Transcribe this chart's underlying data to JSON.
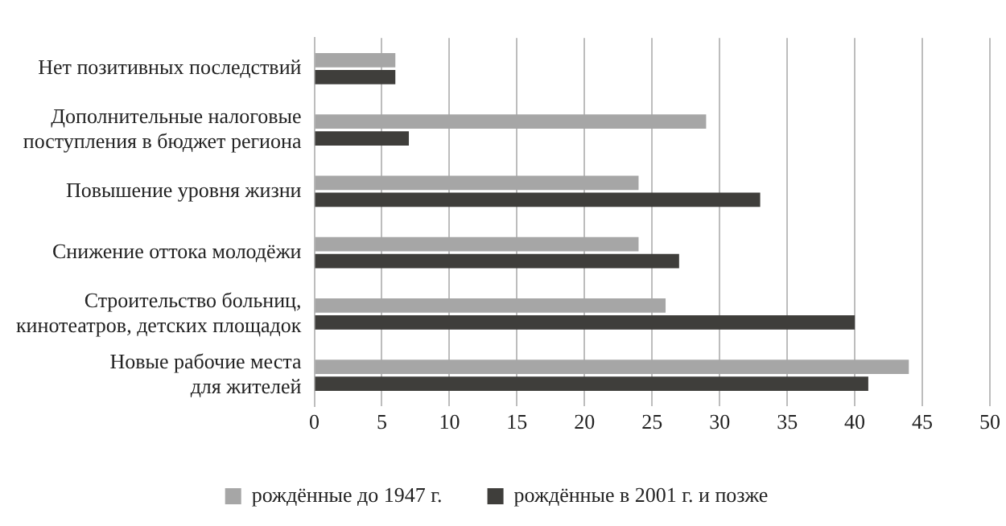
{
  "chart_data": {
    "type": "bar",
    "orientation": "horizontal",
    "categories": [
      "Нет позитивных последствий",
      "Дополнительные налоговые\nпоступления в бюджет региона",
      "Повышение уровня жизни",
      "Снижение оттока молодёжи",
      "Строительство больниц,\nкинотеатров, детских площадок",
      "Новые рабочие места\nдля жителей"
    ],
    "series": [
      {
        "name": "рождённые до 1947 г.",
        "color": "#a6a6a6",
        "values": [
          6,
          29,
          24,
          24,
          26,
          44
        ]
      },
      {
        "name": "рождённые в 2001 г. и позже",
        "color": "#3f3e3b",
        "values": [
          6,
          7,
          33,
          27,
          40,
          41
        ]
      }
    ],
    "xlim": [
      0,
      50
    ],
    "xticks": [
      0,
      5,
      10,
      15,
      20,
      25,
      30,
      35,
      40,
      45,
      50
    ],
    "grid": "x",
    "legend": "bottom"
  }
}
